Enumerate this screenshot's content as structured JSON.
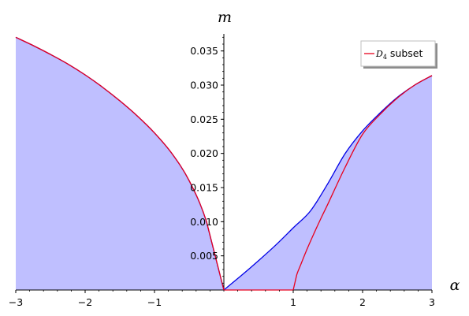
{
  "chart_data": {
    "type": "area",
    "xlabel": "α",
    "ylabel": "m",
    "xlim": [
      -3,
      3
    ],
    "ylim": [
      0,
      0.0375
    ],
    "x_ticks": [
      -3,
      -2,
      -1,
      1,
      2,
      3
    ],
    "x_tick_labels": [
      "−3",
      "−2",
      "−1",
      "1",
      "2",
      "3"
    ],
    "y_ticks": [
      0.005,
      0.01,
      0.015,
      0.02,
      0.025,
      0.03,
      0.035
    ],
    "y_tick_labels": [
      "0.005",
      "0.010",
      "0.015",
      "0.020",
      "0.025",
      "0.030",
      "0.035"
    ],
    "legend": {
      "position": "top-right",
      "math": "D",
      "sub": "4",
      "label": " subset",
      "color": "#e8001c"
    },
    "series": [
      {
        "name": "",
        "color": "#0000e6",
        "fill": "#bfbfff",
        "x": [
          -3.0,
          -2.75,
          -2.5,
          -2.25,
          -2.0,
          -1.75,
          -1.5,
          -1.25,
          -1.0,
          -0.75,
          -0.5,
          -0.25,
          0.0,
          0.25,
          0.5,
          0.75,
          1.0,
          1.25,
          1.5,
          1.75,
          2.0,
          2.25,
          2.5,
          2.75,
          3.0
        ],
        "y": [
          0.037,
          0.0358,
          0.0345,
          0.0331,
          0.0315,
          0.0297,
          0.0277,
          0.0255,
          0.023,
          0.02,
          0.016,
          0.01,
          0.0,
          0.0021,
          0.0043,
          0.0066,
          0.0091,
          0.0116,
          0.0156,
          0.02,
          0.0233,
          0.0259,
          0.0282,
          0.03,
          0.0314
        ]
      },
      {
        "name": "D_4 subset",
        "color": "#e8001c",
        "x": [
          -3.0,
          -2.75,
          -2.5,
          -2.25,
          -2.0,
          -1.75,
          -1.5,
          -1.25,
          -1.0,
          -0.75,
          -0.5,
          -0.25,
          0.0,
          0.5,
          1.0,
          1.05,
          1.1,
          1.2,
          1.3,
          1.4,
          1.5,
          1.75,
          2.0,
          2.25,
          2.5,
          2.75,
          3.0
        ],
        "y": [
          0.037,
          0.0358,
          0.0345,
          0.0331,
          0.0315,
          0.0297,
          0.0277,
          0.0255,
          0.023,
          0.02,
          0.016,
          0.01,
          0.0,
          0.0,
          0.0,
          0.0022,
          0.0035,
          0.006,
          0.0083,
          0.0105,
          0.0126,
          0.018,
          0.0228,
          0.0257,
          0.0281,
          0.03,
          0.0314
        ]
      }
    ]
  }
}
